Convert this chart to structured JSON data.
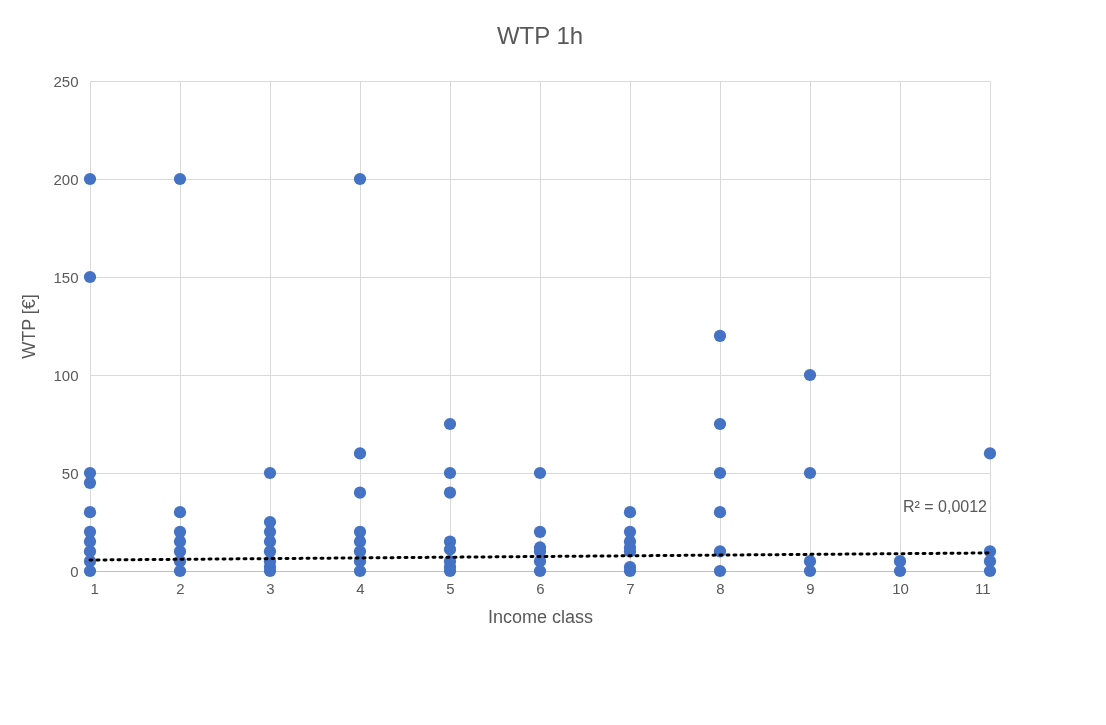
{
  "chart_data": {
    "type": "scatter",
    "title": "WTP 1h",
    "xlabel": "Income class",
    "ylabel": "WTP [€]",
    "xlim": [
      1,
      11
    ],
    "xticks": [
      1,
      2,
      3,
      4,
      5,
      6,
      7,
      8,
      9,
      10,
      11
    ],
    "ylim": [
      0,
      250
    ],
    "yticks": [
      0,
      50,
      100,
      150,
      200,
      250
    ],
    "grid": true,
    "series": [
      {
        "color": "#4472c4",
        "marker": "circle",
        "x": [
          1,
          1,
          1,
          1,
          1,
          1,
          1,
          1,
          1,
          1,
          2,
          2,
          2,
          2,
          2,
          2,
          2,
          3,
          3,
          3,
          3,
          3,
          3,
          3,
          3,
          4,
          4,
          4,
          4,
          4,
          4,
          4,
          4,
          5,
          5,
          5,
          5,
          5,
          5,
          5,
          5,
          6,
          6,
          6,
          6,
          6,
          6,
          7,
          7,
          7,
          7,
          7,
          7,
          7,
          8,
          8,
          8,
          8,
          8,
          8,
          9,
          9,
          9,
          9,
          10,
          10,
          11,
          11,
          11,
          11
        ],
        "values": [
          200,
          150,
          50,
          45,
          30,
          20,
          15,
          10,
          5,
          0,
          200,
          30,
          20,
          15,
          10,
          5,
          0,
          50,
          25,
          20,
          15,
          10,
          5,
          2,
          0,
          200,
          60,
          40,
          20,
          15,
          10,
          5,
          0,
          75,
          50,
          40,
          15,
          11,
          5,
          2,
          0,
          50,
          20,
          12,
          10,
          5,
          0,
          30,
          20,
          15,
          12,
          10,
          2,
          0,
          120,
          75,
          50,
          30,
          10,
          0,
          100,
          50,
          5,
          0,
          5,
          0,
          60,
          10,
          5,
          0
        ]
      },
      {
        "type": "line",
        "color": "#000000",
        "line_style": "dotted",
        "x": [
          1,
          11
        ],
        "values": [
          5.6,
          9.2
        ]
      }
    ],
    "annotations": [
      "R² = 0,0012"
    ]
  }
}
